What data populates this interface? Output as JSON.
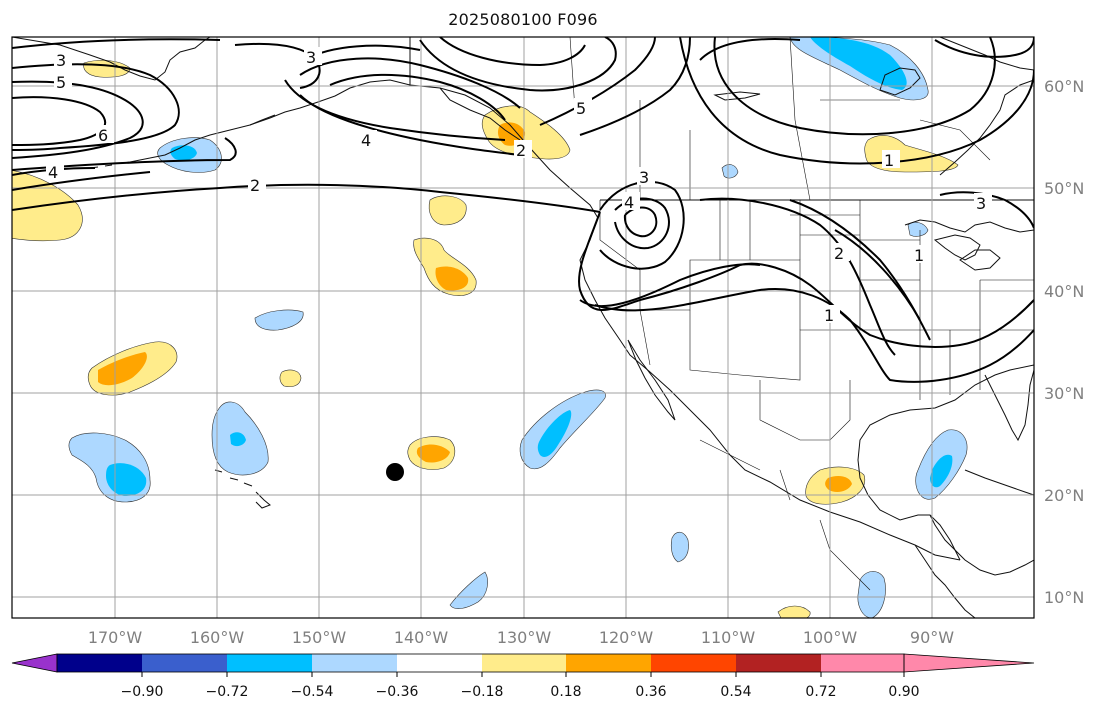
{
  "title": "2025080100 F096",
  "longitude_labels": [
    "170°W",
    "160°W",
    "150°W",
    "140°W",
    "130°W",
    "120°W",
    "110°W",
    "100°W",
    "90°W"
  ],
  "latitude_labels": [
    "60°N",
    "50°N",
    "40°N",
    "30°N",
    "20°N",
    "10°N"
  ],
  "colorbar": {
    "tick_labels": [
      "−0.90",
      "−0.72",
      "−0.54",
      "−0.36",
      "−0.18",
      "0.18",
      "0.36",
      "0.54",
      "0.72",
      "0.90"
    ],
    "colors": [
      "#9932cc",
      "#00008b",
      "#3a5fcd",
      "#00bfff",
      "#add8ff",
      "#ffffff",
      "#ffec8b",
      "#ffa500",
      "#ff4500",
      "#b22222",
      "#ff88aa"
    ]
  },
  "contour_labels": [
    "3",
    "5",
    "6",
    "4",
    "2",
    "3",
    "4",
    "5",
    "3",
    "4",
    "2",
    "1",
    "1",
    "2",
    "3",
    "1"
  ],
  "marker": {
    "type": "dot",
    "color": "#000000"
  }
}
